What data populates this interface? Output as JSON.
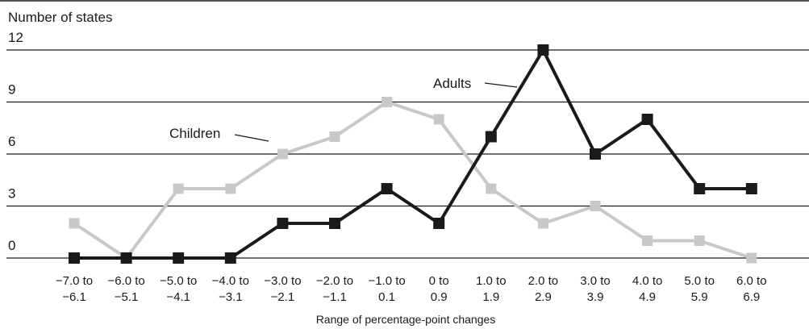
{
  "chart_data": {
    "type": "line",
    "ylabel": "Number of states",
    "xlabel": "Range of percentage-point changes",
    "ylim": [
      0,
      12
    ],
    "yticks": [
      "0",
      "3",
      "6",
      "9",
      "12"
    ],
    "grid": true,
    "categories": [
      [
        "−7.0 to",
        "−6.1"
      ],
      [
        "−6.0 to",
        "−5.1"
      ],
      [
        "−5.0 to",
        "−4.1"
      ],
      [
        "−4.0 to",
        "−3.1"
      ],
      [
        "−3.0 to",
        "−2.1"
      ],
      [
        "−2.0 to",
        "−1.1"
      ],
      [
        "−1.0 to",
        "0.1"
      ],
      [
        "0 to",
        "0.9"
      ],
      [
        "1.0 to",
        "1.9"
      ],
      [
        "2.0 to",
        "2.9"
      ],
      [
        "3.0  to",
        "3.9"
      ],
      [
        "4.0 to",
        "4.9"
      ],
      [
        "5.0 to",
        "5.9"
      ],
      [
        "6.0 to",
        "6.9"
      ]
    ],
    "series": [
      {
        "name": "Children",
        "color": "#c8c8c8",
        "values": [
          2,
          0,
          4,
          4,
          6,
          7,
          9,
          8,
          4,
          2,
          3,
          1,
          1,
          0
        ]
      },
      {
        "name": "Adults",
        "color": "#1a1a1a",
        "values": [
          0,
          0,
          0,
          0,
          2,
          2,
          4,
          2,
          7,
          12,
          6,
          8,
          4,
          4
        ]
      }
    ]
  }
}
